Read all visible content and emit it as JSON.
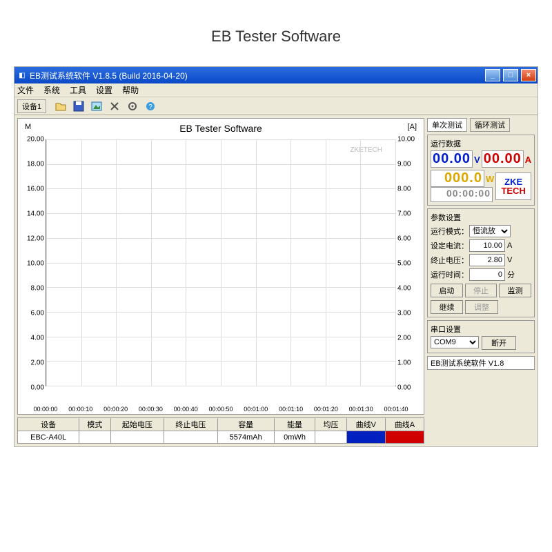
{
  "page_heading": "EB Tester Software",
  "window": {
    "title": "EB测试系统软件 V1.8.5 (Build 2016-04-20)"
  },
  "menu": {
    "items": [
      "文件",
      "系统",
      "工具",
      "设置",
      "帮助"
    ]
  },
  "toolbar": {
    "device_tab": "设备1"
  },
  "chart": {
    "title": "EB Tester Software",
    "watermark": "ZKETECH",
    "y_left": {
      "label": "M",
      "ticks": [
        "20.00",
        "18.00",
        "16.00",
        "14.00",
        "12.00",
        "10.00",
        "8.00",
        "6.00",
        "4.00",
        "2.00",
        "0.00"
      ]
    },
    "y_right": {
      "label": "[A]",
      "ticks": [
        "10.00",
        "9.00",
        "8.00",
        "7.00",
        "6.00",
        "5.00",
        "4.00",
        "3.00",
        "2.00",
        "1.00",
        "0.00"
      ]
    },
    "x_ticks": [
      "00:00:00",
      "00:00:10",
      "00:00:20",
      "00:00:30",
      "00:00:40",
      "00:00:50",
      "00:01:00",
      "00:01:10",
      "00:01:20",
      "00:01:30",
      "00:01:40"
    ],
    "grid_color": "#dddddd"
  },
  "table": {
    "columns": [
      "设备",
      "模式",
      "起始电压",
      "终止电压",
      "容量",
      "能量",
      "均压",
      "曲线V",
      "曲线A"
    ],
    "row": {
      "device": "EBC-A40L",
      "mode": "",
      "start_v": "",
      "end_v": "",
      "capacity": "5574mAh",
      "energy": "0mWh",
      "avg_v": "",
      "color_v": "#0020c0",
      "color_a": "#d00000"
    }
  },
  "tabs": {
    "single": "单次测试",
    "loop": "循环测试"
  },
  "readouts": {
    "label": "运行数据",
    "voltage": "00.00",
    "voltage_unit": "V",
    "current": "00.00",
    "current_unit": "A",
    "power": "000.0",
    "power_unit": "W",
    "time": "00:00:00",
    "logo1": "ZKE",
    "logo2": "TECH"
  },
  "params": {
    "label": "参数设置",
    "mode_label": "运行模式：",
    "mode_value": "恒流放",
    "current_label": "设定电流：",
    "current_value": "10.00",
    "current_unit": "A",
    "cutoff_label": "终止电压：",
    "cutoff_value": "2.80",
    "cutoff_unit": "V",
    "time_label": "运行时间：",
    "time_value": "0",
    "time_unit": "分",
    "btn_start": "启动",
    "btn_stop": "停止",
    "btn_monitor": "监测",
    "btn_continue": "继续",
    "btn_adjust": "调整"
  },
  "serial": {
    "label": "串口设置",
    "port": "COM9",
    "btn_disconnect": "断开"
  },
  "statusbar": "EB测试系统软件 V1.8"
}
